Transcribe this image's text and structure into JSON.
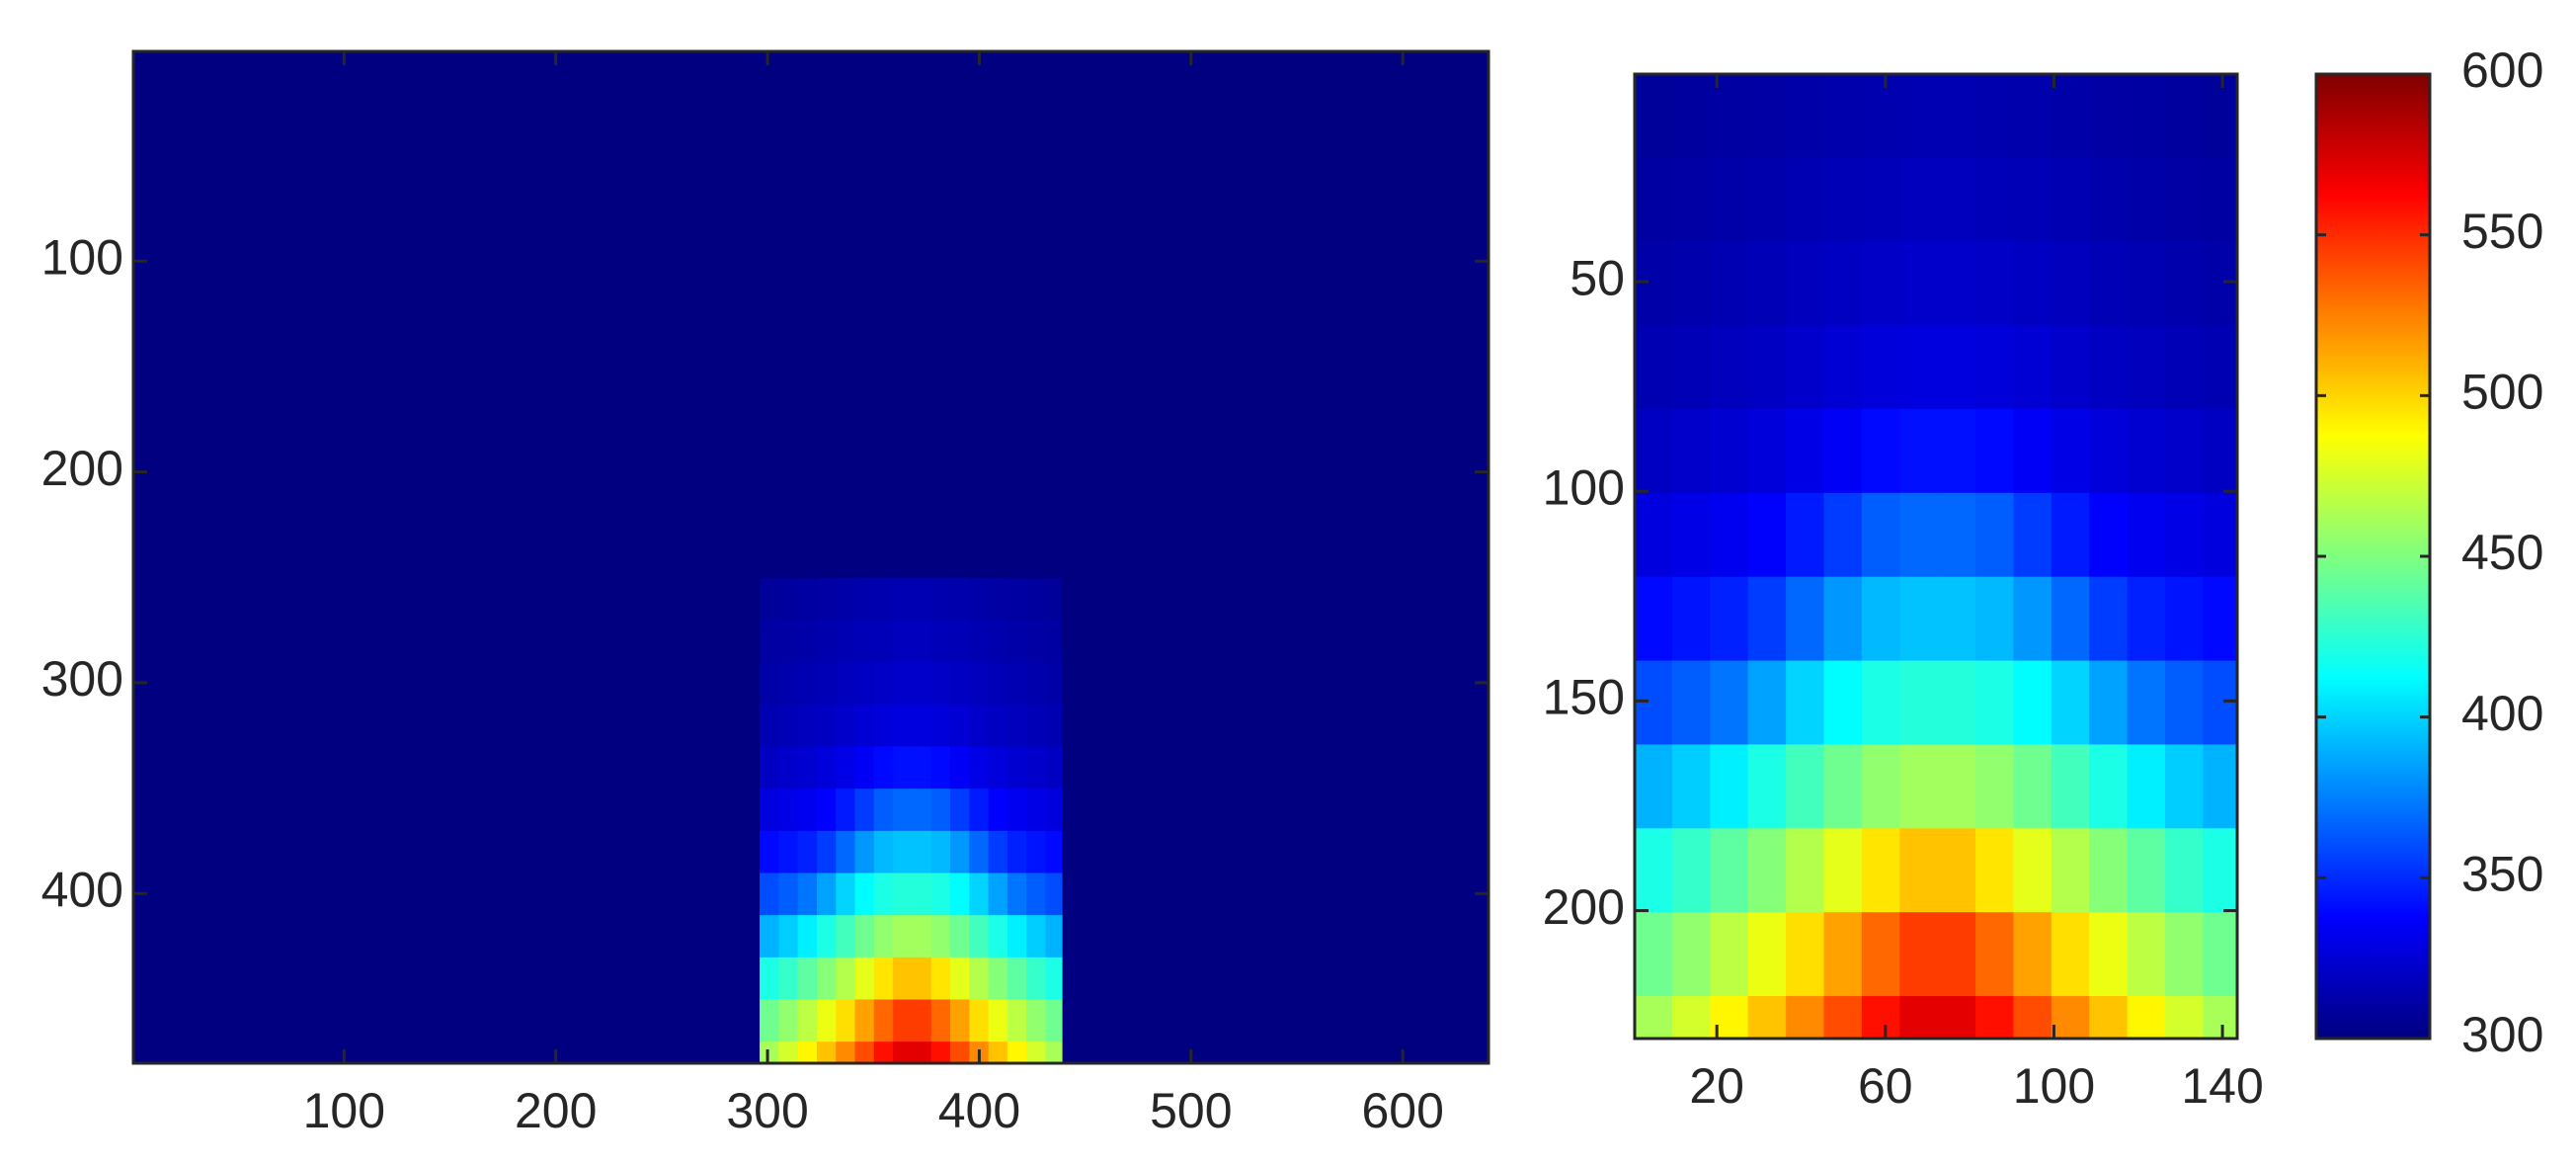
{
  "chart_data": [
    {
      "type": "heatmap",
      "colormap": "jet",
      "clim": [
        300,
        600
      ],
      "y_reversed": true,
      "xlim": [
        0.5,
        640.5
      ],
      "ylim": [
        0.5,
        480.5
      ],
      "xticks": [
        100,
        200,
        300,
        400,
        500,
        600
      ],
      "yticks": [
        100,
        200,
        300,
        400
      ],
      "xbins": [
        0.5,
        296.5,
        305.5,
        314.5,
        323.5,
        332.5,
        341.5,
        350.5,
        359.5,
        368.5,
        377.5,
        386.5,
        395.5,
        404.5,
        413.5,
        422.5,
        431.5,
        439.5,
        640.5
      ],
      "ybins": [
        0.5,
        250.5,
        270.5,
        290.5,
        310.5,
        330.5,
        350.5,
        370.5,
        390.5,
        410.5,
        430.5,
        450.5,
        470.5,
        480.5
      ],
      "values": [
        [
          300,
          300,
          300,
          300,
          300,
          300,
          300,
          300,
          300,
          300,
          300,
          300,
          300,
          300,
          300,
          300,
          300,
          300
        ],
        [
          300,
          308,
          309,
          310,
          311,
          312,
          313,
          314,
          315,
          315,
          314,
          313,
          312,
          311,
          310,
          309,
          308,
          300
        ],
        [
          300,
          310,
          311,
          312,
          313,
          315,
          316,
          317,
          318,
          318,
          317,
          316,
          315,
          313,
          312,
          311,
          310,
          300
        ],
        [
          300,
          312,
          313,
          315,
          316,
          318,
          320,
          321,
          322,
          322,
          321,
          320,
          318,
          316,
          315,
          313,
          312,
          300
        ],
        [
          300,
          315,
          316,
          318,
          320,
          322,
          325,
          327,
          328,
          328,
          327,
          325,
          322,
          320,
          318,
          316,
          315,
          300
        ],
        [
          300,
          320,
          322,
          324,
          327,
          330,
          335,
          340,
          342,
          342,
          340,
          335,
          330,
          327,
          324,
          322,
          320,
          300
        ],
        [
          300,
          328,
          330,
          333,
          337,
          345,
          355,
          365,
          368,
          368,
          365,
          355,
          345,
          337,
          333,
          330,
          328,
          300
        ],
        [
          300,
          340,
          343,
          347,
          355,
          368,
          382,
          392,
          395,
          395,
          392,
          382,
          368,
          355,
          347,
          343,
          340,
          300
        ],
        [
          300,
          360,
          365,
          372,
          385,
          400,
          412,
          420,
          423,
          423,
          420,
          412,
          400,
          385,
          372,
          365,
          360,
          300
        ],
        [
          300,
          390,
          398,
          408,
          420,
          432,
          445,
          455,
          460,
          460,
          455,
          445,
          432,
          420,
          408,
          398,
          390,
          300
        ],
        [
          300,
          420,
          428,
          440,
          452,
          465,
          480,
          495,
          505,
          505,
          495,
          480,
          465,
          452,
          440,
          428,
          420,
          300
        ],
        [
          300,
          445,
          455,
          468,
          482,
          497,
          515,
          532,
          545,
          545,
          532,
          515,
          497,
          482,
          468,
          455,
          445,
          300
        ],
        [
          300,
          462,
          475,
          490,
          505,
          522,
          540,
          558,
          570,
          570,
          558,
          540,
          522,
          505,
          490,
          475,
          462,
          300
        ]
      ]
    },
    {
      "type": "heatmap",
      "colormap": "jet",
      "clim": [
        300,
        600
      ],
      "y_reversed": true,
      "xlim": [
        0.5,
        143.5
      ],
      "ylim": [
        0.5,
        230.5
      ],
      "xticks": [
        20,
        60,
        100,
        140
      ],
      "yticks": [
        50,
        100,
        150,
        200
      ],
      "cticks": [
        300,
        350,
        400,
        450,
        500,
        550,
        600
      ],
      "xbins": [
        0.5,
        9.5,
        18.5,
        27.5,
        36.5,
        45.5,
        54.5,
        63.5,
        72.5,
        81.5,
        90.5,
        99.5,
        108.5,
        117.5,
        126.5,
        135.5,
        143.5
      ],
      "ybins": [
        0.5,
        20.5,
        40.5,
        60.5,
        80.5,
        100.5,
        120.5,
        140.5,
        160.5,
        180.5,
        200.5,
        220.5,
        230.5
      ],
      "values": [
        [
          308,
          309,
          310,
          311,
          312,
          313,
          314,
          315,
          315,
          314,
          313,
          312,
          311,
          310,
          309,
          308
        ],
        [
          310,
          311,
          312,
          313,
          315,
          316,
          317,
          318,
          318,
          317,
          316,
          315,
          313,
          312,
          311,
          310
        ],
        [
          312,
          313,
          315,
          316,
          318,
          320,
          321,
          322,
          322,
          321,
          320,
          318,
          316,
          315,
          313,
          312
        ],
        [
          315,
          316,
          318,
          320,
          322,
          325,
          327,
          328,
          328,
          327,
          325,
          322,
          320,
          318,
          316,
          315
        ],
        [
          320,
          322,
          324,
          327,
          330,
          335,
          340,
          342,
          342,
          340,
          335,
          330,
          327,
          324,
          322,
          320
        ],
        [
          328,
          330,
          333,
          337,
          345,
          355,
          365,
          368,
          368,
          365,
          355,
          345,
          337,
          333,
          330,
          328
        ],
        [
          340,
          343,
          347,
          355,
          368,
          382,
          392,
          395,
          395,
          392,
          382,
          368,
          355,
          347,
          343,
          340
        ],
        [
          360,
          365,
          372,
          385,
          400,
          412,
          420,
          423,
          423,
          420,
          412,
          400,
          385,
          372,
          365,
          360
        ],
        [
          390,
          398,
          408,
          420,
          432,
          445,
          455,
          460,
          460,
          455,
          445,
          432,
          420,
          408,
          398,
          390
        ],
        [
          420,
          428,
          440,
          452,
          465,
          480,
          495,
          505,
          505,
          495,
          480,
          465,
          452,
          440,
          428,
          420
        ],
        [
          445,
          455,
          468,
          482,
          497,
          515,
          532,
          545,
          545,
          532,
          515,
          497,
          482,
          468,
          455,
          445
        ],
        [
          462,
          475,
          490,
          505,
          522,
          540,
          558,
          570,
          570,
          558,
          540,
          522,
          505,
          490,
          475,
          462
        ]
      ]
    }
  ]
}
